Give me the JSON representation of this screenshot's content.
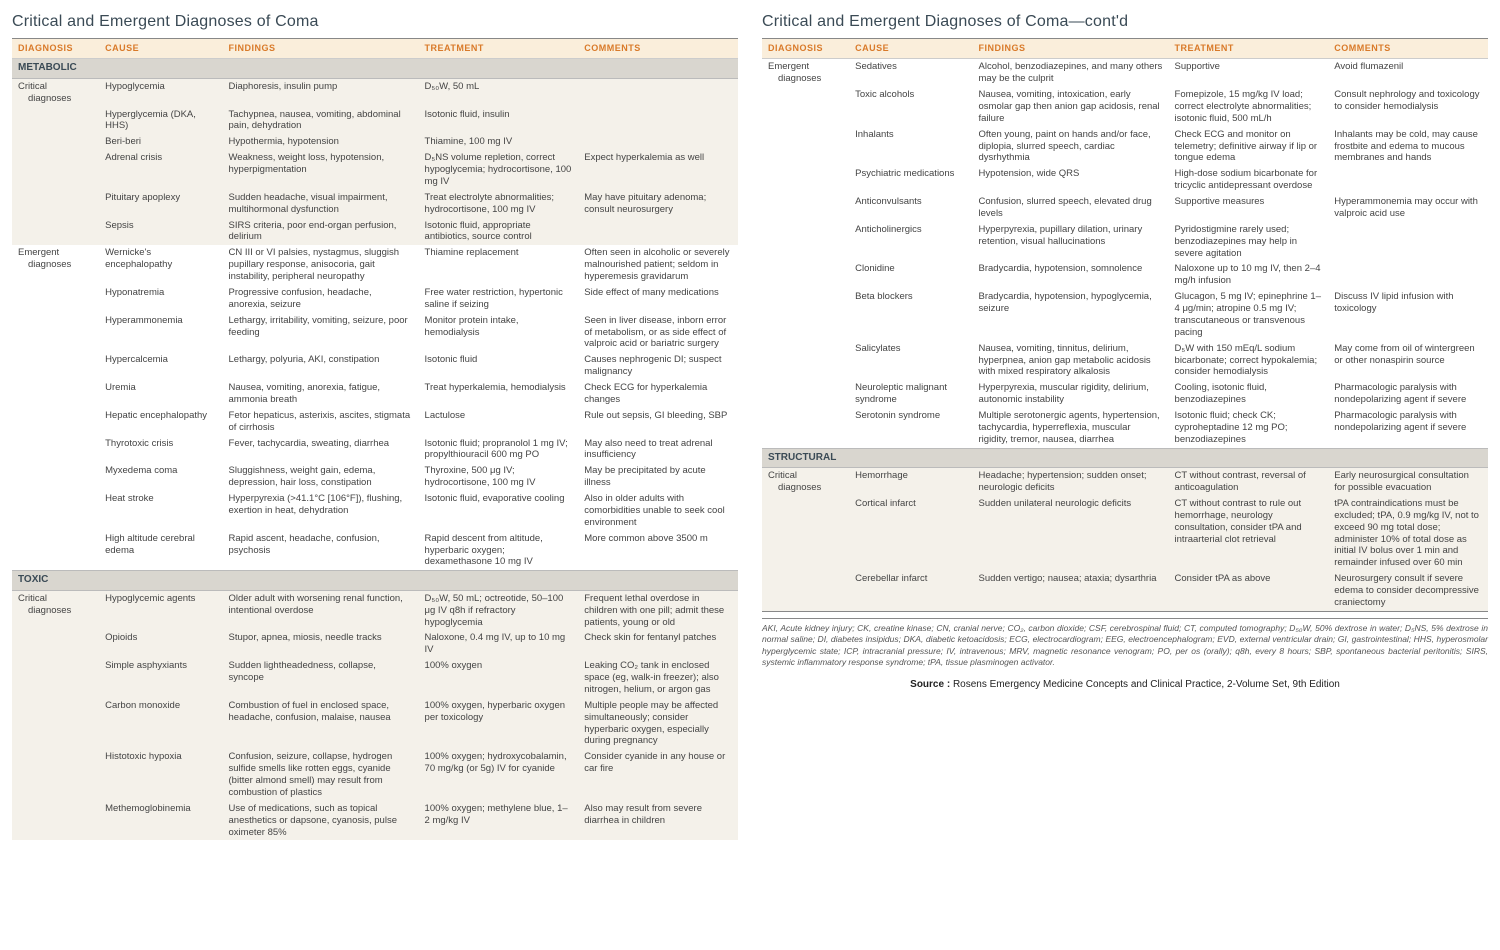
{
  "titles": {
    "left": "Critical and Emergent Diagnoses of Coma",
    "right": "Critical and Emergent Diagnoses of Coma—cont'd"
  },
  "headers": [
    "DIAGNOSIS",
    "CAUSE",
    "FINDINGS",
    "TREATMENT",
    "COMMENTS"
  ],
  "colors": {
    "header_bg": "#faeedb",
    "header_text": "#d97a2a",
    "section_bg": "#d9d6cf",
    "row_alt_bg": "#f4f1ea",
    "title_text": "#3a4a55"
  },
  "left": {
    "sections": [
      {
        "name": "METABOLIC",
        "groups": [
          {
            "diagnosis": "Critical diagnoses",
            "rows": [
              {
                "cause": "Hypoglycemia",
                "findings": "Diaphoresis, insulin pump",
                "treatment": "D₅₀W, 50 mL",
                "comments": ""
              },
              {
                "cause": "Hyperglycemia (DKA, HHS)",
                "findings": "Tachypnea, nausea, vomiting, abdominal pain, dehydration",
                "treatment": "Isotonic fluid, insulin",
                "comments": ""
              },
              {
                "cause": "Beri-beri",
                "findings": "Hypothermia, hypotension",
                "treatment": "Thiamine, 100 mg IV",
                "comments": ""
              },
              {
                "cause": "Adrenal crisis",
                "findings": "Weakness, weight loss, hypotension, hyperpigmentation",
                "treatment": "D₅NS volume repletion, correct hypoglycemia; hydrocortisone, 100 mg IV",
                "comments": "Expect hyperkalemia as well"
              },
              {
                "cause": "Pituitary apoplexy",
                "findings": "Sudden headache, visual impairment, multihormonal dysfunction",
                "treatment": "Treat electrolyte abnormalities; hydrocortisone, 100 mg IV",
                "comments": "May have pituitary adenoma; consult neurosurgery"
              },
              {
                "cause": "Sepsis",
                "findings": "SIRS criteria, poor end-organ perfusion, delirium",
                "treatment": "Isotonic fluid, appropriate antibiotics, source control",
                "comments": ""
              }
            ]
          },
          {
            "diagnosis": "Emergent diagnoses",
            "rows": [
              {
                "cause": "Wernicke's encephalopathy",
                "findings": "CN III or VI palsies, nystagmus, sluggish pupillary response, anisocoria, gait instability, peripheral neuropathy",
                "treatment": "Thiamine replacement",
                "comments": "Often seen in alcoholic or severely malnourished patient; seldom in hyperemesis gravidarum"
              },
              {
                "cause": "Hyponatremia",
                "findings": "Progressive confusion, headache, anorexia, seizure",
                "treatment": "Free water restriction, hypertonic saline if seizing",
                "comments": "Side effect of many medications"
              },
              {
                "cause": "Hyperammonemia",
                "findings": "Lethargy, irritability, vomiting, seizure, poor feeding",
                "treatment": "Monitor protein intake, hemodialysis",
                "comments": "Seen in liver disease, inborn error of metabolism, or as side effect of valproic acid or bariatric surgery"
              },
              {
                "cause": "Hypercalcemia",
                "findings": "Lethargy, polyuria, AKI, constipation",
                "treatment": "Isotonic fluid",
                "comments": "Causes nephrogenic DI; suspect malignancy"
              },
              {
                "cause": "Uremia",
                "findings": "Nausea, vomiting, anorexia, fatigue, ammonia breath",
                "treatment": "Treat hyperkalemia, hemodialysis",
                "comments": "Check ECG for hyperkalemia changes"
              },
              {
                "cause": "Hepatic encephalopathy",
                "findings": "Fetor hepaticus, asterixis, ascites, stigmata of cirrhosis",
                "treatment": "Lactulose",
                "comments": "Rule out sepsis, GI bleeding, SBP"
              },
              {
                "cause": "Thyrotoxic crisis",
                "findings": "Fever, tachycardia, sweating, diarrhea",
                "treatment": "Isotonic fluid; propranolol 1 mg IV; propylthiouracil 600 mg PO",
                "comments": "May also need to treat adrenal insufficiency"
              },
              {
                "cause": "Myxedema coma",
                "findings": "Sluggishness, weight gain, edema, depression, hair loss, constipation",
                "treatment": "Thyroxine, 500 μg IV; hydrocortisone, 100 mg IV",
                "comments": "May be precipitated by acute illness"
              },
              {
                "cause": "Heat stroke",
                "findings": "Hyperpyrexia (>41.1°C [106°F]), flushing, exertion in heat, dehydration",
                "treatment": "Isotonic fluid, evaporative cooling",
                "comments": "Also in older adults with comorbidities unable to seek cool environment"
              },
              {
                "cause": "High altitude cerebral edema",
                "findings": "Rapid ascent, headache, confusion, psychosis",
                "treatment": "Rapid descent from altitude, hyperbaric oxygen; dexamethasone 10 mg IV",
                "comments": "More common above 3500 m"
              }
            ]
          }
        ]
      },
      {
        "name": "TOXIC",
        "groups": [
          {
            "diagnosis": "Critical diagnoses",
            "rows": [
              {
                "cause": "Hypoglycemic agents",
                "findings": "Older adult with worsening renal function, intentional overdose",
                "treatment": "D₅₀W, 50 mL; octreotide, 50–100 μg IV q8h if refractory hypoglycemia",
                "comments": "Frequent lethal overdose in children with one pill; admit these patients, young or old"
              },
              {
                "cause": "Opioids",
                "findings": "Stupor, apnea, miosis, needle tracks",
                "treatment": "Naloxone, 0.4 mg IV, up to 10 mg IV",
                "comments": "Check skin for fentanyl patches"
              },
              {
                "cause": "Simple asphyxiants",
                "findings": "Sudden lightheadedness, collapse, syncope",
                "treatment": "100% oxygen",
                "comments": "Leaking CO₂ tank in enclosed space (eg, walk-in freezer); also nitrogen, helium, or argon gas"
              },
              {
                "cause": "Carbon monoxide",
                "findings": "Combustion of fuel in enclosed space, headache, confusion, malaise, nausea",
                "treatment": "100% oxygen, hyperbaric oxygen per toxicology",
                "comments": "Multiple people may be affected simultaneously; consider hyperbaric oxygen, especially during pregnancy"
              },
              {
                "cause": "Histotoxic hypoxia",
                "findings": "Confusion, seizure, collapse, hydrogen sulfide smells like rotten eggs, cyanide (bitter almond smell) may result from combustion of plastics",
                "treatment": "100% oxygen; hydroxycobalamin, 70 mg/kg (or 5g) IV for cyanide",
                "comments": "Consider cyanide in any house or car fire"
              },
              {
                "cause": "Methemoglobinemia",
                "findings": "Use of medications, such as topical anesthetics or dapsone, cyanosis, pulse oximeter 85%",
                "treatment": "100% oxygen; methylene blue, 1–2 mg/kg IV",
                "comments": "Also may result from severe diarrhea in children"
              }
            ]
          }
        ]
      }
    ]
  },
  "right": {
    "sections": [
      {
        "name": null,
        "groups": [
          {
            "diagnosis": "Emergent diagnoses",
            "rows": [
              {
                "cause": "Sedatives",
                "findings": "Alcohol, benzodiazepines, and many others may be the culprit",
                "treatment": "Supportive",
                "comments": "Avoid flumazenil"
              },
              {
                "cause": "Toxic alcohols",
                "findings": "Nausea, vomiting, intoxication, early osmolar gap then anion gap acidosis, renal failure",
                "treatment": "Fomepizole, 15 mg/kg IV load; correct electrolyte abnormalities; isotonic fluid, 500 mL/h",
                "comments": "Consult nephrology and toxicology to consider hemodialysis"
              },
              {
                "cause": "Inhalants",
                "findings": "Often young, paint on hands and/or face, diplopia, slurred speech, cardiac dysrhythmia",
                "treatment": "Check ECG and monitor on telemetry; definitive airway if lip or tongue edema",
                "comments": "Inhalants may be cold, may cause frostbite and edema to mucous membranes and hands"
              },
              {
                "cause": "Psychiatric medications",
                "findings": "Hypotension, wide QRS",
                "treatment": "High-dose sodium bicarbonate for tricyclic antidepressant overdose",
                "comments": ""
              },
              {
                "cause": "Anticonvulsants",
                "findings": "Confusion, slurred speech, elevated drug levels",
                "treatment": "Supportive measures",
                "comments": "Hyperammonemia may occur with valproic acid use"
              },
              {
                "cause": "Anticholinergics",
                "findings": "Hyperpyrexia, pupillary dilation, urinary retention, visual hallucinations",
                "treatment": "Pyridostigmine rarely used; benzodiazepines may help in severe agitation",
                "comments": ""
              },
              {
                "cause": "Clonidine",
                "findings": "Bradycardia, hypotension, somnolence",
                "treatment": "Naloxone up to 10 mg IV, then 2–4 mg/h infusion",
                "comments": ""
              },
              {
                "cause": "Beta blockers",
                "findings": "Bradycardia, hypotension, hypoglycemia, seizure",
                "treatment": "Glucagon, 5 mg IV; epinephrine 1–4 μg/min; atropine 0.5 mg IV; transcutaneous or transvenous pacing",
                "comments": "Discuss IV lipid infusion with toxicology"
              },
              {
                "cause": "Salicylates",
                "findings": "Nausea, vomiting, tinnitus, delirium, hyperpnea, anion gap metabolic acidosis with mixed respiratory alkalosis",
                "treatment": "D₅W with 150 mEq/L sodium bicarbonate; correct hypokalemia; consider hemodialysis",
                "comments": "May come from oil of wintergreen or other nonaspirin source"
              },
              {
                "cause": "Neuroleptic malignant syndrome",
                "findings": "Hyperpyrexia, muscular rigidity, delirium, autonomic instability",
                "treatment": "Cooling, isotonic fluid, benzodiazepines",
                "comments": "Pharmacologic paralysis with nondepolarizing agent if severe"
              },
              {
                "cause": "Serotonin syndrome",
                "findings": "Multiple serotonergic agents, hypertension, tachycardia, hyperreflexia, muscular rigidity, tremor, nausea, diarrhea",
                "treatment": "Isotonic fluid; check CK; cyproheptadine 12 mg PO; benzodiazepines",
                "comments": "Pharmacologic paralysis with nondepolarizing agent if severe"
              }
            ]
          }
        ]
      },
      {
        "name": "STRUCTURAL",
        "groups": [
          {
            "diagnosis": "Critical diagnoses",
            "rows": [
              {
                "cause": "Hemorrhage",
                "findings": "Headache; hypertension; sudden onset; neurologic deficits",
                "treatment": "CT without contrast, reversal of anticoagulation",
                "comments": "Early neurosurgical consultation for possible evacuation"
              },
              {
                "cause": "Cortical infarct",
                "findings": "Sudden unilateral neurologic deficits",
                "treatment": "CT without contrast to rule out hemorrhage, neurology consultation, consider tPA and intraarterial clot retrieval",
                "comments": "tPA contraindications must be excluded; tPA, 0.9 mg/kg IV, not to exceed 90 mg total dose; administer 10% of total dose as initial IV bolus over 1 min and remainder infused over 60 min"
              },
              {
                "cause": "Cerebellar infarct",
                "findings": "Sudden vertigo; nausea; ataxia; dysarthria",
                "treatment": "Consider tPA as above",
                "comments": "Neurosurgery consult if severe edema to consider decompressive craniectomy"
              }
            ]
          }
        ]
      }
    ]
  },
  "footnote": "AKI, Acute kidney injury; CK, creatine kinase; CN, cranial nerve; CO₂, carbon dioxide; CSF, cerebrospinal fluid; CT, computed tomography; D₅₀W, 50% dextrose in water; D₅NS, 5% dextrose in normal saline; DI, diabetes insipidus; DKA, diabetic ketoacidosis; ECG, electrocardiogram; EEG, electroencephalogram; EVD, external ventricular drain; GI, gastrointestinal; HHS, hyperosmolar hyperglycemic state; ICP, intracranial pressure; IV, intravenous; MRV, magnetic resonance venogram; PO, per os (orally); q8h, every 8 hours; SBP, spontaneous bacterial peritonitis; SIRS, systemic inflammatory response syndrome; tPA, tissue plasminogen activator.",
  "source_label": "Source :",
  "source_text": "Rosens Emergency Medicine Concepts and Clinical Practice, 2-Volume Set, 9th Edition"
}
